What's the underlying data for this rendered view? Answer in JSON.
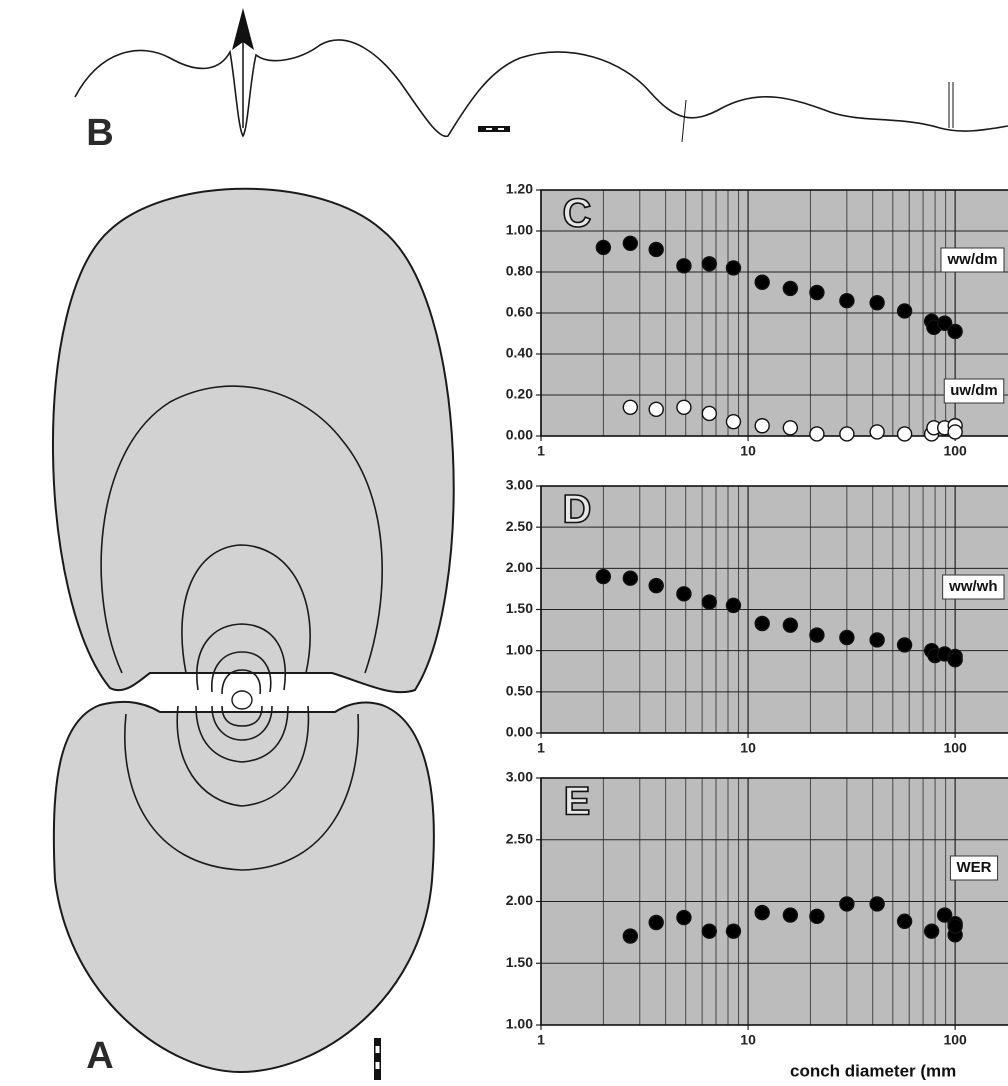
{
  "figure_panels": [
    {
      "label": "A"
    },
    {
      "label": "B"
    }
  ],
  "chart_data": [
    {
      "type": "scatter",
      "panel": "C",
      "xscale": "log",
      "xlim": [
        1,
        180
      ],
      "xticks": [
        1,
        10,
        100
      ],
      "xminorticks": [
        2,
        3,
        4,
        5,
        6,
        7,
        8,
        9,
        20,
        30,
        40,
        50,
        60,
        70,
        80,
        90
      ],
      "ylim": [
        0,
        1.2
      ],
      "yticks": [
        {
          "value": 0,
          "label": "0.00"
        },
        {
          "value": 0.2,
          "label": "0.20"
        },
        {
          "value": 0.4,
          "label": "0.40"
        },
        {
          "value": 0.6,
          "label": "0.60"
        },
        {
          "value": 0.8,
          "label": "0.80"
        },
        {
          "value": 1.0,
          "label": "1.00"
        },
        {
          "value": 1.2,
          "label": "1.20"
        }
      ],
      "grid": true,
      "series": [
        {
          "name": "ww/dm",
          "color": "#000000",
          "x": [
            2.0,
            2.7,
            3.6,
            4.9,
            6.5,
            8.5,
            11.7,
            16,
            21.5,
            30,
            42,
            57,
            77,
            79,
            89,
            100
          ],
          "values": [
            0.92,
            0.94,
            0.91,
            0.83,
            0.84,
            0.82,
            0.75,
            0.72,
            0.7,
            0.66,
            0.65,
            0.61,
            0.56,
            0.53,
            0.55,
            0.51
          ]
        },
        {
          "name": "uw/dm",
          "color": "#ffffff",
          "x": [
            2.7,
            3.6,
            4.9,
            6.5,
            8.5,
            11.7,
            16,
            21.5,
            30,
            42,
            57,
            77,
            79,
            89,
            100,
            100
          ],
          "values": [
            0.14,
            0.13,
            0.14,
            0.11,
            0.07,
            0.05,
            0.04,
            0.01,
            0.01,
            0.02,
            0.01,
            0.01,
            0.04,
            0.04,
            0.05,
            0.02
          ]
        }
      ]
    },
    {
      "type": "scatter",
      "panel": "D",
      "xscale": "log",
      "xlim": [
        1,
        180
      ],
      "xticks": [
        1,
        10,
        100
      ],
      "xminorticks": [
        2,
        3,
        4,
        5,
        6,
        7,
        8,
        9,
        20,
        30,
        40,
        50,
        60,
        70,
        80,
        90
      ],
      "ylim": [
        0,
        3
      ],
      "yticks": [
        {
          "value": 0,
          "label": "0.00"
        },
        {
          "value": 0.5,
          "label": "0.50"
        },
        {
          "value": 1.0,
          "label": "1.00"
        },
        {
          "value": 1.5,
          "label": "1.50"
        },
        {
          "value": 2.0,
          "label": "2.00"
        },
        {
          "value": 2.5,
          "label": "2.50"
        },
        {
          "value": 3.0,
          "label": "3.00"
        }
      ],
      "grid": true,
      "series": [
        {
          "name": "ww/wh",
          "color": "#000000",
          "x": [
            2.0,
            2.7,
            3.6,
            4.9,
            6.5,
            8.5,
            11.7,
            16,
            21.5,
            30,
            42,
            57,
            77,
            80,
            89,
            100,
            100
          ],
          "values": [
            1.9,
            1.88,
            1.79,
            1.69,
            1.59,
            1.55,
            1.33,
            1.31,
            1.19,
            1.16,
            1.13,
            1.07,
            1.0,
            0.94,
            0.96,
            0.93,
            0.89
          ]
        }
      ]
    },
    {
      "type": "scatter",
      "panel": "E",
      "xscale": "log",
      "xlim": [
        1,
        180
      ],
      "xticks": [
        1,
        10,
        100
      ],
      "xminorticks": [
        2,
        3,
        4,
        5,
        6,
        7,
        8,
        9,
        20,
        30,
        40,
        50,
        60,
        70,
        80,
        90
      ],
      "ylim": [
        1,
        3
      ],
      "yticks": [
        {
          "value": 1.0,
          "label": "1.00"
        },
        {
          "value": 1.5,
          "label": "1.50"
        },
        {
          "value": 2.0,
          "label": "2.00"
        },
        {
          "value": 2.5,
          "label": "2.50"
        },
        {
          "value": 3.0,
          "label": "3.00"
        }
      ],
      "grid": true,
      "xlabel": "conch diameter (mm",
      "series": [
        {
          "name": "WER",
          "color": "#000000",
          "x": [
            2.7,
            3.6,
            4.9,
            6.5,
            8.5,
            11.7,
            16,
            21.5,
            30,
            42,
            57,
            77,
            89,
            100,
            100,
            100
          ],
          "values": [
            1.72,
            1.83,
            1.87,
            1.76,
            1.76,
            1.91,
            1.89,
            1.88,
            1.98,
            1.98,
            1.84,
            1.76,
            1.89,
            1.82,
            1.73,
            1.8
          ]
        }
      ]
    }
  ]
}
